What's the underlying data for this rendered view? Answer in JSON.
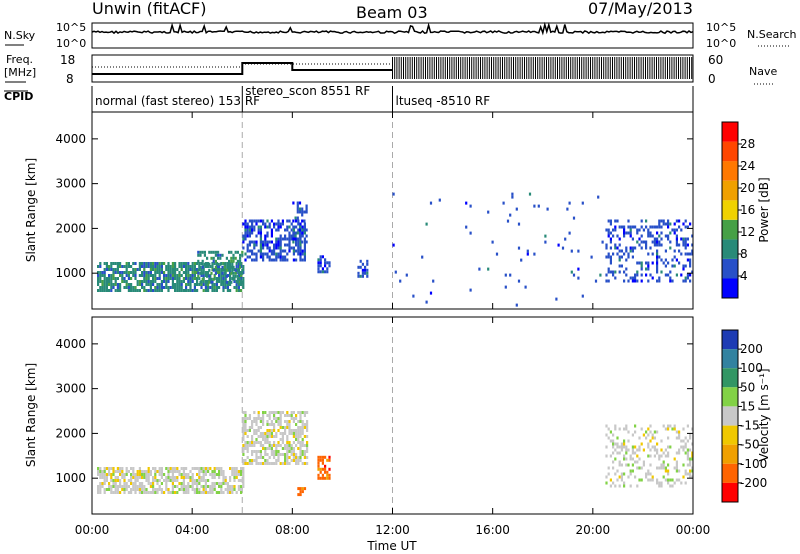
{
  "header": {
    "station": "Unwin (fitACF)",
    "beam": "Beam 03",
    "date": "07/May/2013"
  },
  "side_labels": {
    "nsky": "N.Sky",
    "freq": "Freq.",
    "freq_unit": "[MHz]",
    "cpid": "CPID",
    "nsearch": "N.Search",
    "nave": "Nave"
  },
  "noise_panel": {
    "ytick_top": "10^5",
    "ytick_bottom": "10^0"
  },
  "freq_panel": {
    "left_ticks": [
      18,
      8
    ],
    "right_ticks": [
      60,
      0
    ]
  },
  "cpid_segments": [
    {
      "label": "normal (fast stereo) 153 RF",
      "start_hour": 0,
      "end_hour": 6.0
    },
    {
      "label": "stereo_scon 8551 RF",
      "start_hour": 6.0,
      "end_hour": 12.0
    },
    {
      "label": "ltuseq -8510 RF",
      "start_hour": 12.0,
      "end_hour": 24.0
    }
  ],
  "colors": {
    "power": [
      "#0000ff",
      "#2850c8",
      "#288a78",
      "#46a046",
      "#f0d200",
      "#f0a000",
      "#ff7800",
      "#ff4600",
      "#ff0000"
    ],
    "velocity": [
      "#1e3cb4",
      "#3282a0",
      "#329664",
      "#82d246",
      "#c8c8c8",
      "#f0c800",
      "#f0a000",
      "#ff6400",
      "#ff0000"
    ]
  },
  "chart_data": [
    {
      "type": "heatmap",
      "parameter": "power",
      "ylabel": "Slant Range [km]",
      "ylim": [
        200,
        4600
      ],
      "yticks": [
        1000,
        2000,
        3000,
        4000
      ],
      "xlim": [
        0,
        24
      ],
      "colorbar_label": "Power [dB]",
      "colorbar_range": [
        0,
        32
      ],
      "colorbar_ticks": [
        4,
        8,
        12,
        16,
        20,
        24,
        28
      ],
      "regions": [
        {
          "x0": 0.2,
          "x1": 6.0,
          "y0": 620,
          "y1": 1250,
          "level": 2,
          "density": 0.75
        },
        {
          "x0": 4.2,
          "x1": 6.0,
          "y0": 800,
          "y1": 1500,
          "level": 2,
          "density": 0.5
        },
        {
          "x0": 6.0,
          "x1": 8.5,
          "y0": 1300,
          "y1": 2200,
          "level": 1,
          "density": 0.6
        },
        {
          "x0": 8.0,
          "x1": 8.6,
          "y0": 1600,
          "y1": 2600,
          "level": 1,
          "density": 0.4
        },
        {
          "x0": 9.0,
          "x1": 9.5,
          "y0": 1000,
          "y1": 1400,
          "level": 1,
          "density": 0.6
        },
        {
          "x0": 10.6,
          "x1": 11.0,
          "y0": 900,
          "y1": 1300,
          "level": 1,
          "density": 0.6
        },
        {
          "x0": 20.5,
          "x1": 24.0,
          "y0": 800,
          "y1": 2200,
          "level": 1,
          "density": 0.3
        },
        {
          "x0": 12.0,
          "x1": 20.5,
          "y0": 300,
          "y1": 2800,
          "level": 1,
          "density": 0.02
        }
      ]
    },
    {
      "type": "heatmap",
      "parameter": "velocity",
      "ylabel": "Slant Range [km]",
      "ylim": [
        200,
        4600
      ],
      "yticks": [
        1000,
        2000,
        3000,
        4000
      ],
      "xlim": [
        0,
        24
      ],
      "xticks": [
        "00:00",
        "04:00",
        "08:00",
        "12:00",
        "16:00",
        "20:00",
        "00:00"
      ],
      "xlabel": "Time UT",
      "colorbar_label": "Velocity [m s⁻¹]",
      "colorbar_ticks": [
        200,
        100,
        50,
        15,
        -15,
        -50,
        -100,
        -200
      ],
      "regions": [
        {
          "x0": 0.2,
          "x1": 6.0,
          "y0": 650,
          "y1": 1250,
          "level": 4,
          "density": 0.7
        },
        {
          "x0": 6.0,
          "x1": 8.6,
          "y0": 1300,
          "y1": 2500,
          "level": 4,
          "density": 0.6
        },
        {
          "x0": 9.0,
          "x1": 9.5,
          "y0": 1000,
          "y1": 1500,
          "level": 7,
          "density": 0.75
        },
        {
          "x0": 8.2,
          "x1": 8.5,
          "y0": 600,
          "y1": 800,
          "level": 7,
          "density": 0.6
        },
        {
          "x0": 20.5,
          "x1": 24.0,
          "y0": 800,
          "y1": 2200,
          "level": 4,
          "density": 0.3
        }
      ]
    }
  ]
}
